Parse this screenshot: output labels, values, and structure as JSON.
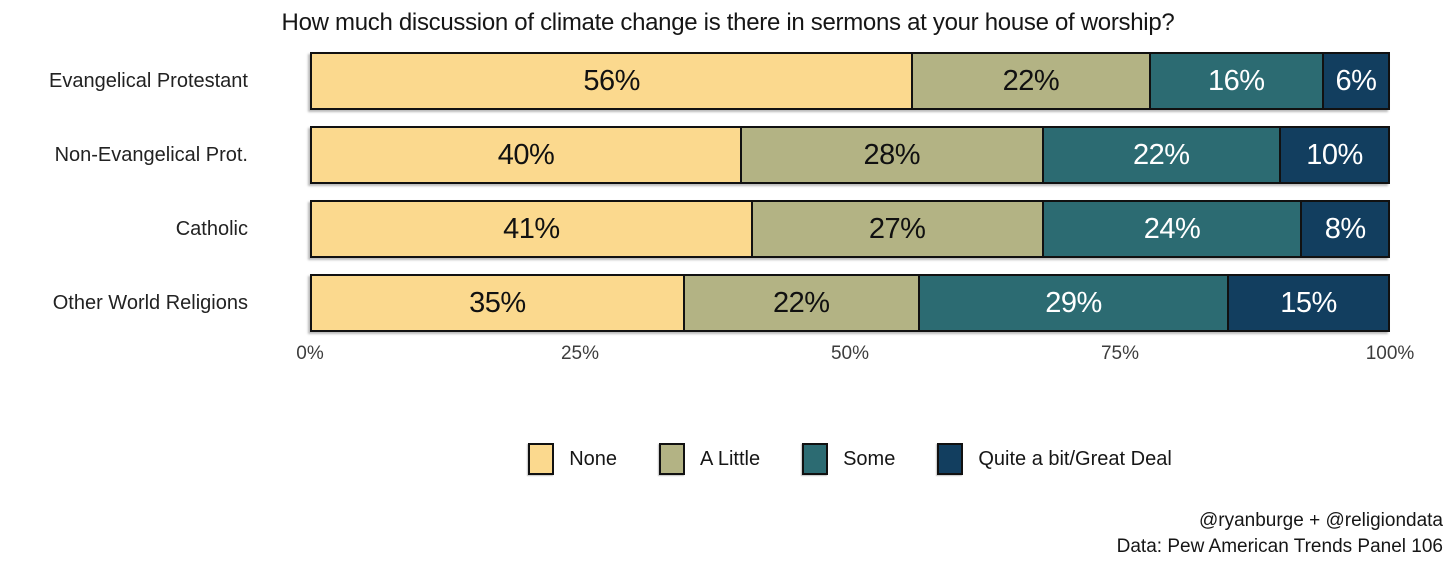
{
  "chart_data": {
    "type": "bar",
    "variant": "horizontal-stacked-100",
    "title": "How much discussion of climate change is there in sermons at your house of worship?",
    "categories": [
      "Evangelical Protestant",
      "Non-Evangelical Prot.",
      "Catholic",
      "Other World Religions"
    ],
    "series": [
      {
        "name": "None",
        "color": "#FBD98E",
        "text_color": "#111111",
        "values": [
          56,
          40,
          41,
          35
        ]
      },
      {
        "name": "A Little",
        "color": "#B3B384",
        "text_color": "#111111",
        "values": [
          22,
          28,
          27,
          22
        ]
      },
      {
        "name": "Some",
        "color": "#2C6B72",
        "text_color": "#FFFFFF",
        "values": [
          16,
          22,
          24,
          29
        ]
      },
      {
        "name": "Quite a bit/Great Deal",
        "color": "#123E5F",
        "text_color": "#FFFFFF",
        "values": [
          6,
          10,
          8,
          15
        ]
      }
    ],
    "value_suffix": "%",
    "x_ticks": [
      "0%",
      "25%",
      "50%",
      "75%",
      "100%"
    ],
    "xlim": [
      0,
      100
    ],
    "grid": false,
    "legend_position": "bottom-center",
    "bar_border_color": "#111111"
  },
  "footer": {
    "credit": "@ryanburge + @religiondata",
    "source": "Data: Pew American Trends Panel 106"
  }
}
